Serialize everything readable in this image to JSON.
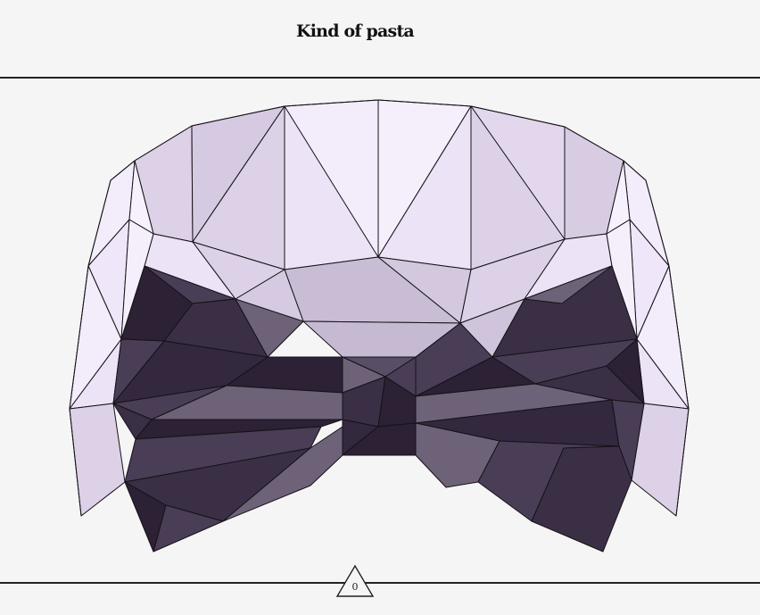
{
  "title": "Kind of pasta",
  "counter": {
    "value": "0",
    "icon": "triangle-icon"
  },
  "illustration": {
    "subject": "farfalle-bowl",
    "colors": {
      "bowl_light": "#f3ecfb",
      "bowl_mid": "#dcd1e6",
      "bowl_shade": "#c6bad2",
      "pasta_dark": "#2c2135",
      "pasta_mid": "#4a3d56",
      "pasta_light": "#6e6278",
      "outline": "#161218",
      "background": "#f6f5f6"
    }
  }
}
